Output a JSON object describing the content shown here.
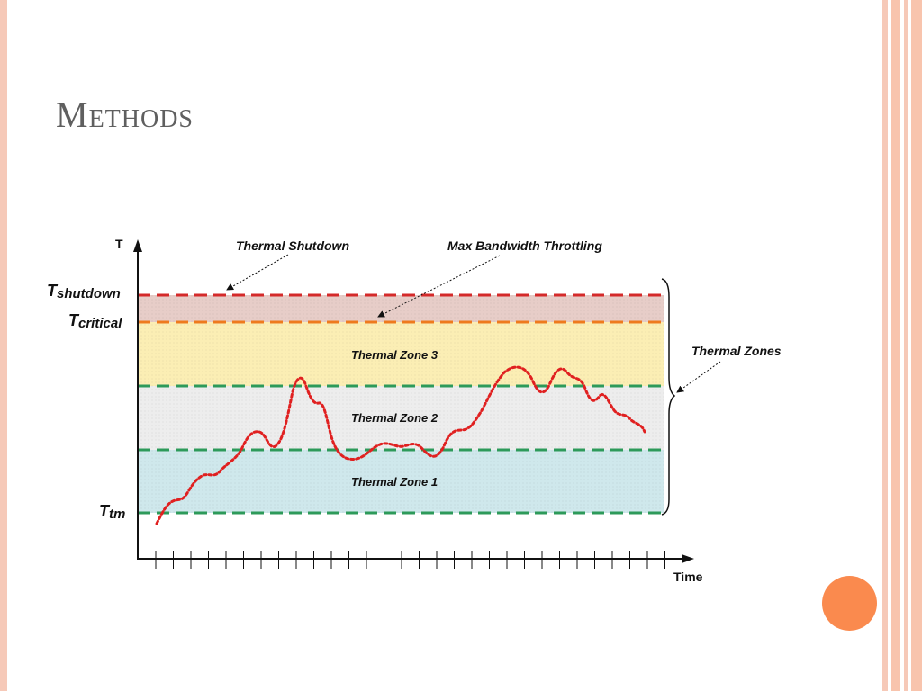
{
  "slide": {
    "title": "Methods"
  },
  "diagram": {
    "y_axis_label": "T",
    "x_axis_label": "Time",
    "levels": {
      "shutdown": {
        "label": "T",
        "sub": "shutdown",
        "color": "#d42a2a"
      },
      "critical": {
        "label": "T",
        "sub": "critical",
        "color": "#ee7a1e"
      },
      "tm": {
        "label": "T",
        "sub": "tm",
        "color": "#2d9a5a"
      }
    },
    "zones": [
      {
        "label": "Thermal Zone 3",
        "color": "#fbeeb4"
      },
      {
        "label": "Thermal Zone 2",
        "color": "#ededed"
      },
      {
        "label": "Thermal Zone 1",
        "color": "#cfe8ec"
      }
    ],
    "annotations": {
      "thermal_shutdown": "Thermal Shutdown",
      "max_bandwidth": "Max Bandwidth Throttling",
      "thermal_zones": "Thermal Zones"
    },
    "temperature_trace_color": "#e02020"
  }
}
